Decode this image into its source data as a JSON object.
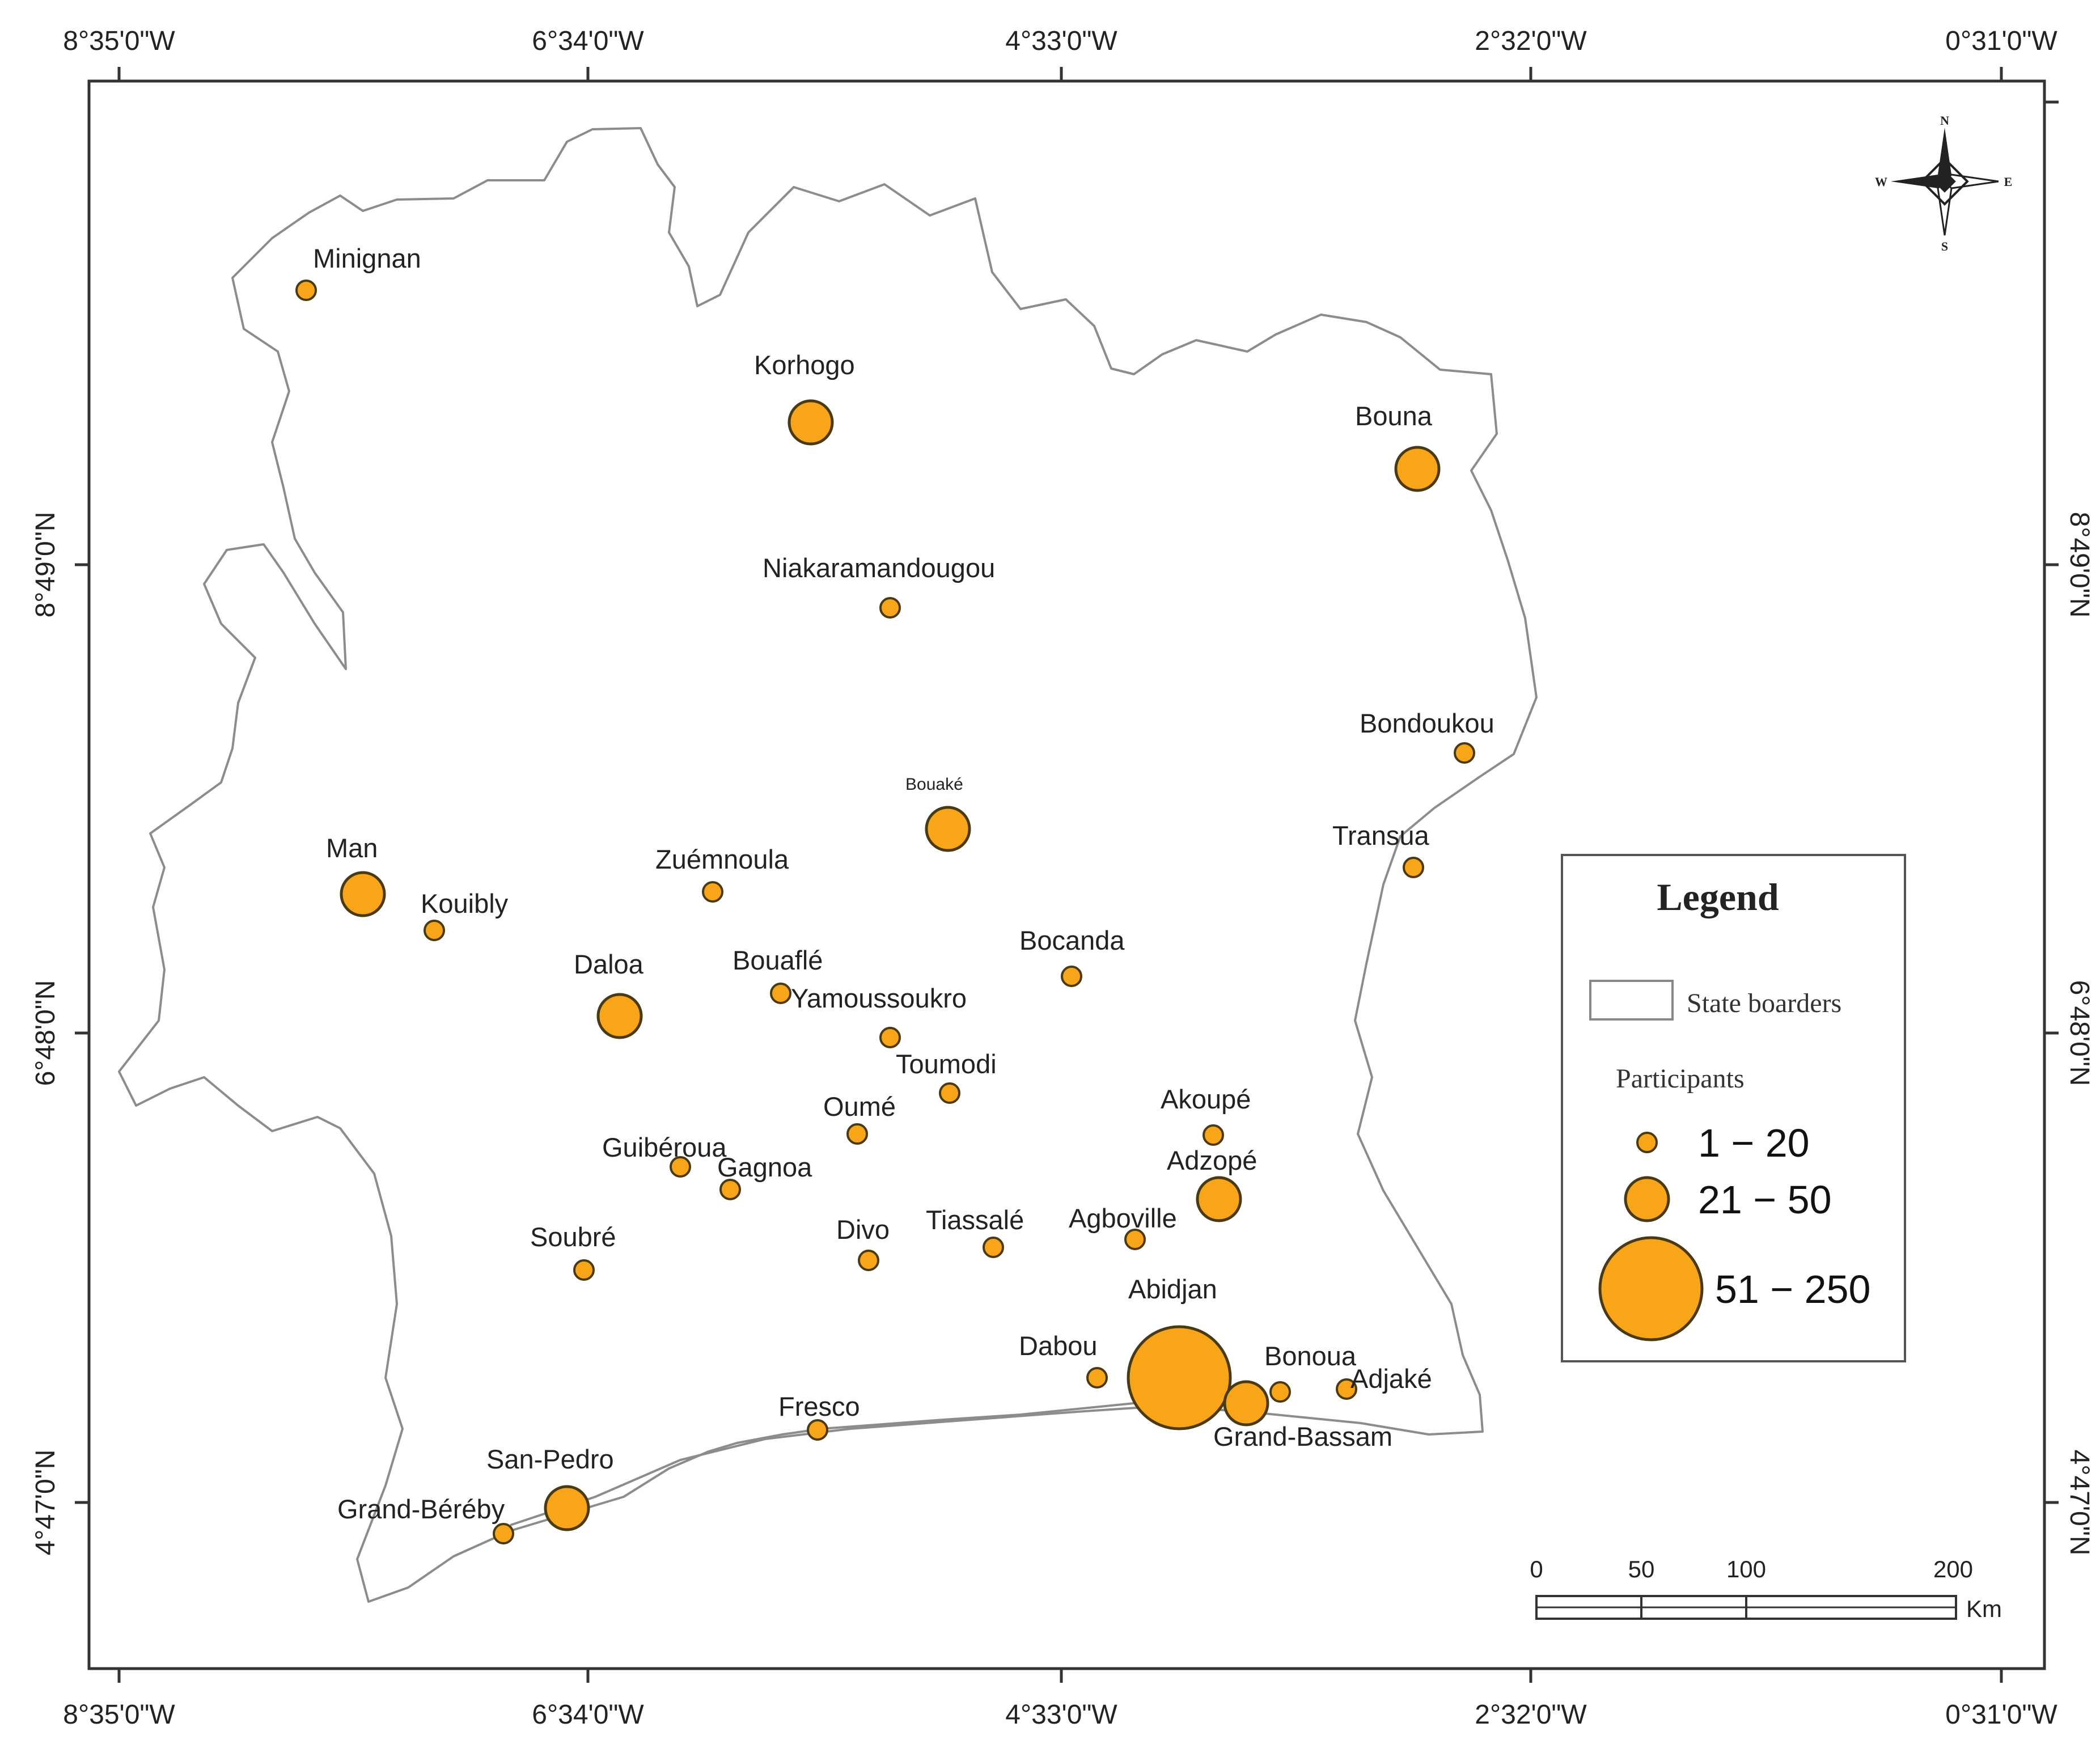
{
  "colors": {
    "marker_fill": "#F9A51A",
    "marker_stroke": "#4a3a10",
    "border": "#8c8c8c",
    "frame": "#333333"
  },
  "axes": {
    "top_labels": [
      "8°35'0\"W",
      "6°34'0\"W",
      "4°33'0\"W",
      "2°32'0\"W",
      "0°31'0\"W"
    ],
    "bottom_labels": [
      "8°35'0\"W",
      "6°34'0\"W",
      "4°33'0\"W",
      "2°32'0\"W",
      "0°31'0\"W"
    ],
    "left_labels": [
      "8°49'0\"N",
      "6°48'0\"N",
      "4°47'0\"N"
    ],
    "right_labels": [
      "8°49'0\"N",
      "6°48'0\"N",
      "4°47'0\"N"
    ]
  },
  "compass": {
    "n": "N",
    "s": "S",
    "e": "E",
    "w": "W",
    "icon": "compass-rose-icon"
  },
  "cities": [
    {
      "name": "Minignan",
      "class": "small"
    },
    {
      "name": "Korhogo",
      "class": "medium"
    },
    {
      "name": "Bouna",
      "class": "medium"
    },
    {
      "name": "Niakaramandougou",
      "class": "small"
    },
    {
      "name": "Bondoukou",
      "class": "small"
    },
    {
      "name": "Bouaké",
      "class": "medium"
    },
    {
      "name": "Transua",
      "class": "small"
    },
    {
      "name": "Man",
      "class": "medium"
    },
    {
      "name": "Kouibly",
      "class": "small"
    },
    {
      "name": "Zuémnoula",
      "class": "small"
    },
    {
      "name": "Daloa",
      "class": "medium"
    },
    {
      "name": "Bouaflé",
      "class": "small"
    },
    {
      "name": "Bocanda",
      "class": "small"
    },
    {
      "name": "Yamoussoukro",
      "class": "small"
    },
    {
      "name": "Toumodi",
      "class": "small"
    },
    {
      "name": "Oumé",
      "class": "small"
    },
    {
      "name": "Akoupé",
      "class": "small"
    },
    {
      "name": "Guibéroua",
      "class": "small"
    },
    {
      "name": "Gagnoa",
      "class": "small"
    },
    {
      "name": "Adzopé",
      "class": "medium"
    },
    {
      "name": "Soubré",
      "class": "small"
    },
    {
      "name": "Divo",
      "class": "small"
    },
    {
      "name": "Tiassalé",
      "class": "small"
    },
    {
      "name": "Agboville",
      "class": "small"
    },
    {
      "name": "Abidjan",
      "class": "large"
    },
    {
      "name": "Dabou",
      "class": "small"
    },
    {
      "name": "Bonoua",
      "class": "small"
    },
    {
      "name": "Adjaké",
      "class": "small"
    },
    {
      "name": "Grand-Bassam",
      "class": "medium"
    },
    {
      "name": "Fresco",
      "class": "small"
    },
    {
      "name": "San-Pedro",
      "class": "medium"
    },
    {
      "name": "Grand-Béréby",
      "class": "small"
    }
  ],
  "legend": {
    "title": "Legend",
    "state_label": "State boarders",
    "participants_label": "Participants",
    "classes": [
      {
        "label": "1 − 20",
        "class": "small"
      },
      {
        "label": "21 − 50",
        "class": "medium"
      },
      {
        "label": "51 − 250",
        "class": "large"
      }
    ]
  },
  "scale_bar": {
    "ticks": [
      "0",
      "50",
      "100",
      "200"
    ],
    "unit": "Km"
  }
}
